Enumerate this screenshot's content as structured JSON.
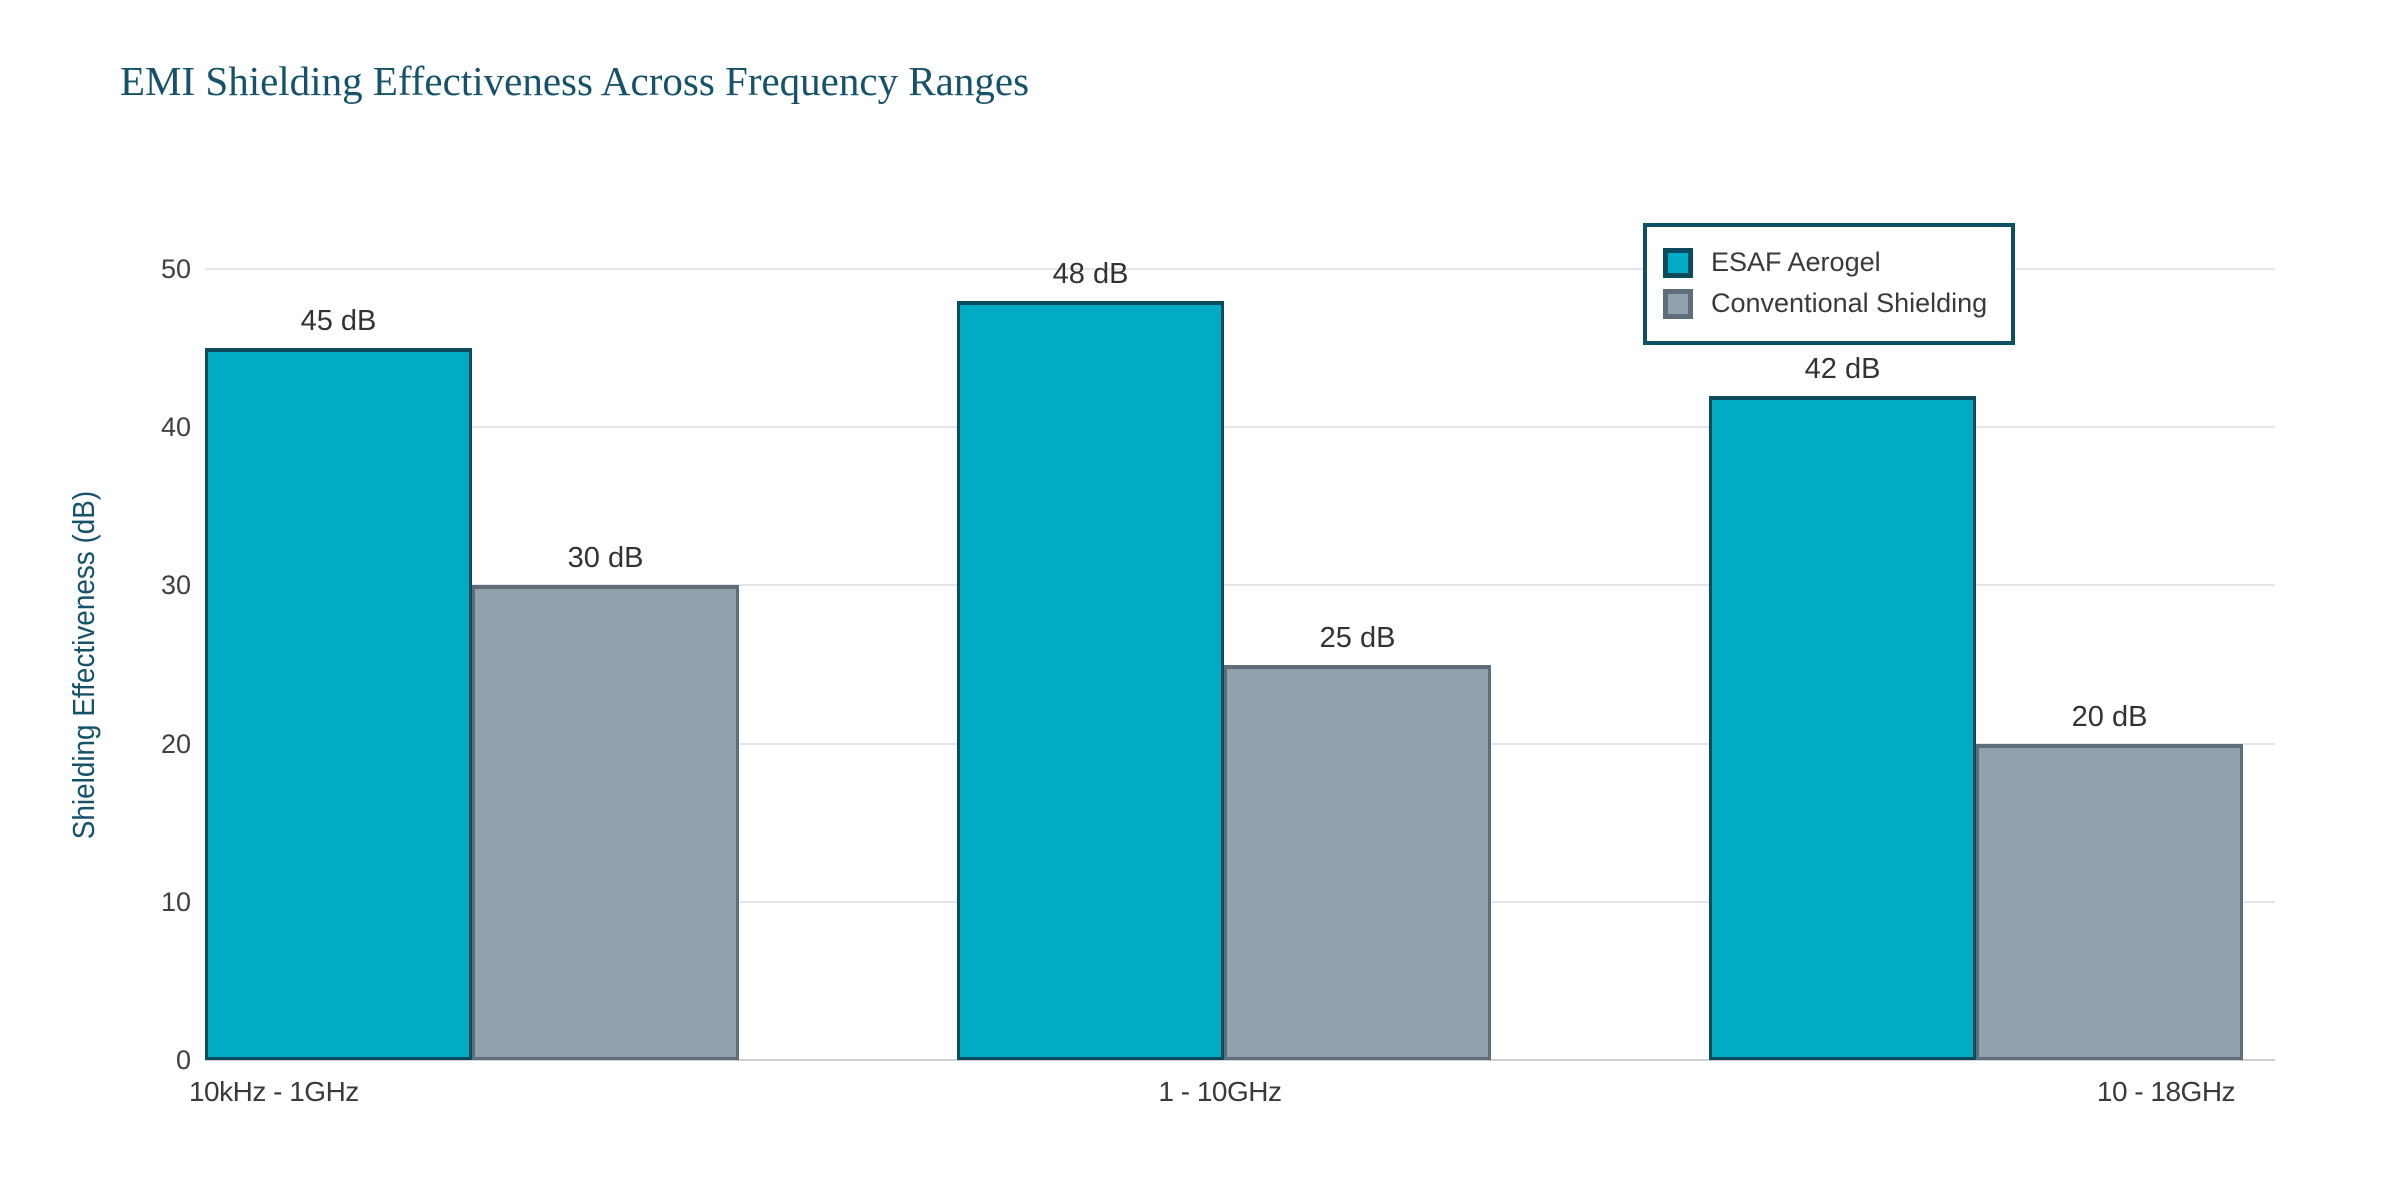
{
  "chart_data": {
    "type": "bar",
    "title": "EMI Shielding Effectiveness Across Frequency Ranges",
    "categories": [
      "10kHz - 1GHz",
      "1 - 10GHz",
      "10 - 18GHz"
    ],
    "series": [
      {
        "name": "ESAF Aerogel",
        "values": [
          45,
          48,
          42
        ],
        "fill_color": "#00ABC4",
        "border_color": "#0C4A5E"
      },
      {
        "name": "Conventional Shielding",
        "values": [
          30,
          25,
          20
        ],
        "fill_color": "#8FA2AC",
        "border_color": "#5D6E79"
      }
    ],
    "value_label_suffix": " dB",
    "value_labels": [
      [
        "45 dB",
        "48 dB",
        "42 dB"
      ],
      [
        "30 dB",
        "25 dB",
        "20 dB"
      ]
    ],
    "xlabel": "",
    "ylabel": "Shielding Effectiveness (dB)",
    "ylim": [
      0,
      50
    ],
    "yticks": [
      0,
      10,
      20,
      30,
      40,
      50
    ],
    "grid": true,
    "legend_position": "top-right"
  },
  "colors": {
    "title": "#16536B",
    "axis_title": "#16536B",
    "tick_text": "#404040",
    "value_text": "#333333",
    "category_text": "#3A3A3A",
    "gridline": "#E6E6E8",
    "baseline": "#D0D0D4",
    "legend_border": "#0F4F63",
    "legend_text": "#3A3A3A",
    "background": "#ffffff"
  }
}
